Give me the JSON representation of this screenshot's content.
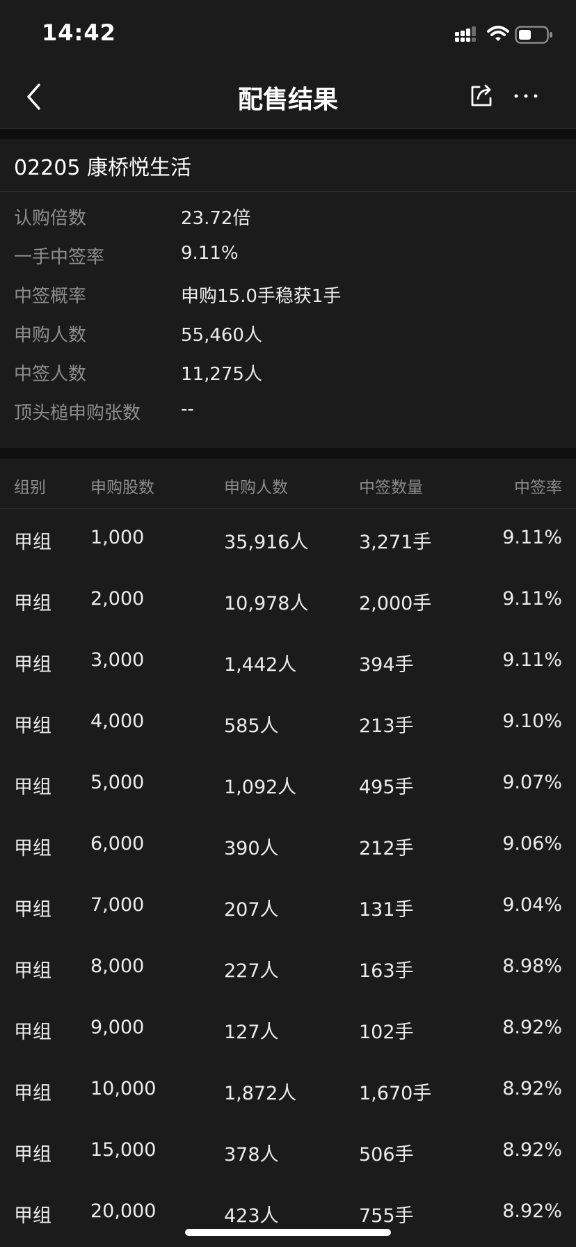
{
  "status_bar": {
    "time": "14:42",
    "icons": [
      "signal-icon",
      "wifi-icon",
      "battery-icon"
    ]
  },
  "nav": {
    "title": "配售结果",
    "icons": [
      "back-icon",
      "share-icon",
      "more-icon"
    ]
  },
  "summary": {
    "stock_title": "02205 康桥悦生活",
    "rows": [
      {
        "label": "认购倍数",
        "value": "23.72倍"
      },
      {
        "label": "一手中签率",
        "value": "9.11%"
      },
      {
        "label": "中签概率",
        "value": "申购15.0手稳获1手"
      },
      {
        "label": "申购人数",
        "value": "55,460人"
      },
      {
        "label": "中签人数",
        "value": "11,275人"
      },
      {
        "label": "顶头槌申购张数",
        "value": "--"
      }
    ]
  },
  "table": {
    "headers": {
      "group": "组别",
      "shares": "申购股数",
      "people": "申购人数",
      "lots": "中签数量",
      "rate": "中签率"
    },
    "rows": [
      {
        "group": "甲组",
        "shares": "1,000",
        "people": "35,916人",
        "lots": "3,271手",
        "rate": "9.11%"
      },
      {
        "group": "甲组",
        "shares": "2,000",
        "people": "10,978人",
        "lots": "2,000手",
        "rate": "9.11%"
      },
      {
        "group": "甲组",
        "shares": "3,000",
        "people": "1,442人",
        "lots": "394手",
        "rate": "9.11%"
      },
      {
        "group": "甲组",
        "shares": "4,000",
        "people": "585人",
        "lots": "213手",
        "rate": "9.10%"
      },
      {
        "group": "甲组",
        "shares": "5,000",
        "people": "1,092人",
        "lots": "495手",
        "rate": "9.07%"
      },
      {
        "group": "甲组",
        "shares": "6,000",
        "people": "390人",
        "lots": "212手",
        "rate": "9.06%"
      },
      {
        "group": "甲组",
        "shares": "7,000",
        "people": "207人",
        "lots": "131手",
        "rate": "9.04%"
      },
      {
        "group": "甲组",
        "shares": "8,000",
        "people": "227人",
        "lots": "163手",
        "rate": "8.98%"
      },
      {
        "group": "甲组",
        "shares": "9,000",
        "people": "127人",
        "lots": "102手",
        "rate": "8.92%"
      },
      {
        "group": "甲组",
        "shares": "10,000",
        "people": "1,872人",
        "lots": "1,670手",
        "rate": "8.92%"
      },
      {
        "group": "甲组",
        "shares": "15,000",
        "people": "378人",
        "lots": "506手",
        "rate": "8.92%"
      },
      {
        "group": "甲组",
        "shares": "20,000",
        "people": "423人",
        "lots": "755手",
        "rate": "8.92%"
      }
    ]
  }
}
